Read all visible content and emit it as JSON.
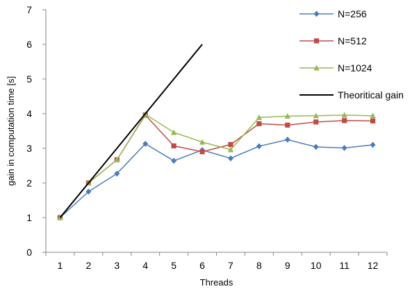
{
  "chart_data": {
    "type": "line",
    "title": "",
    "xlabel": "Threads",
    "ylabel": "gain in computation time [s]",
    "x": [
      1,
      2,
      3,
      4,
      5,
      6,
      7,
      8,
      9,
      10,
      11,
      12
    ],
    "xlim": [
      0.5,
      12.5
    ],
    "ylim": [
      0,
      7
    ],
    "yticks": [
      0,
      1,
      2,
      3,
      4,
      5,
      6,
      7
    ],
    "grid": false,
    "legend": "top-right",
    "series": [
      {
        "name": "N=256",
        "color": "#4A7EBB",
        "marker": "diamond",
        "x": [
          1,
          2,
          3,
          4,
          5,
          6,
          7,
          8,
          9,
          10,
          11,
          12
        ],
        "values": [
          1.0,
          1.75,
          2.27,
          3.13,
          2.64,
          2.95,
          2.71,
          3.06,
          3.25,
          3.04,
          3.01,
          3.1
        ]
      },
      {
        "name": "N=512",
        "color": "#BE4B48",
        "marker": "square",
        "x": [
          1,
          2,
          3,
          4,
          5,
          6,
          7,
          8,
          9,
          10,
          11,
          12
        ],
        "values": [
          1.0,
          2.0,
          2.67,
          3.96,
          3.07,
          2.9,
          3.11,
          3.71,
          3.67,
          3.76,
          3.8,
          3.79
        ]
      },
      {
        "name": "N=1024",
        "color": "#98B954",
        "marker": "triangle",
        "x": [
          1,
          2,
          3,
          4,
          5,
          6,
          7,
          8,
          9,
          10,
          11,
          12
        ],
        "values": [
          1.0,
          2.0,
          2.67,
          3.98,
          3.46,
          3.18,
          2.96,
          3.89,
          3.93,
          3.94,
          3.96,
          3.94
        ]
      },
      {
        "name": "Theoritical gain",
        "color": "#000000",
        "marker": "none",
        "x": [
          1,
          2,
          3,
          4,
          5,
          6
        ],
        "values": [
          1,
          2,
          3,
          4,
          5,
          6
        ]
      }
    ]
  }
}
